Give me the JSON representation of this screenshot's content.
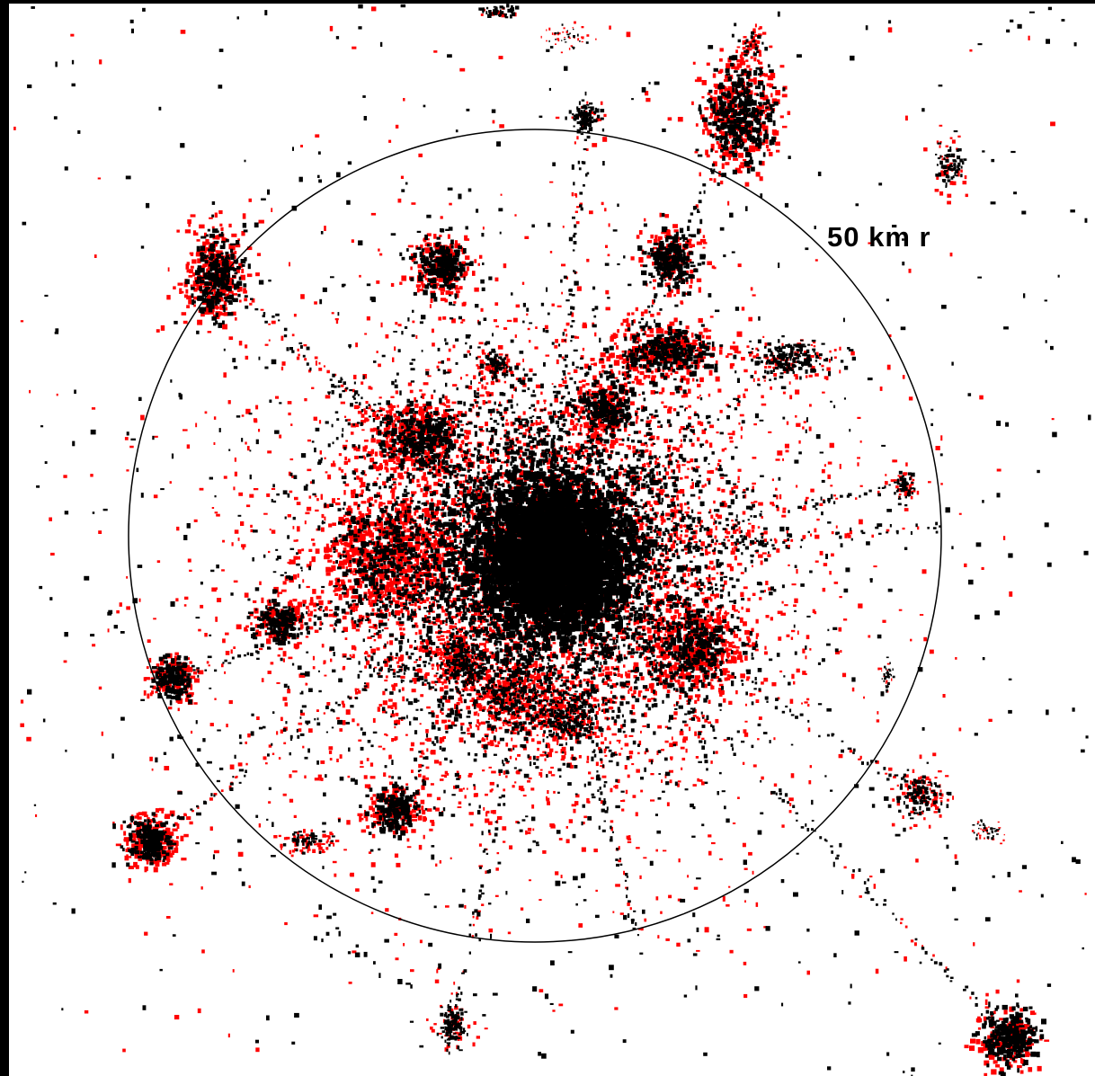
{
  "map": {
    "radius_label": "50 km r",
    "colors": {
      "background": "#ffffff",
      "border": "#000000",
      "older_urban": "#000000",
      "new_urban": "#ff0000",
      "ring": "#000000"
    }
  }
}
